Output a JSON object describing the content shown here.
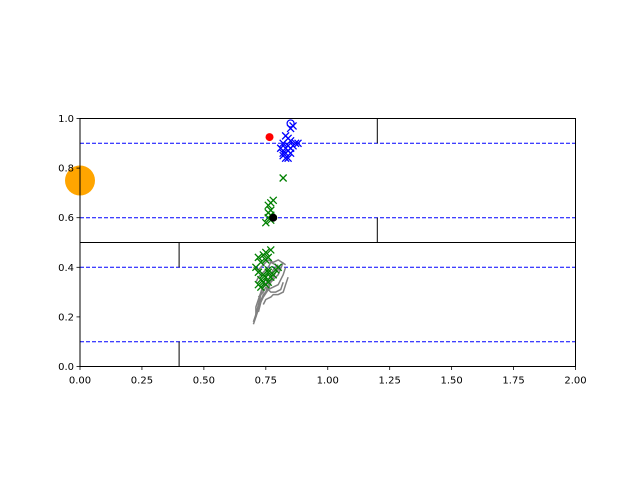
{
  "chart_data": {
    "type": "scatter",
    "title": "",
    "xlabel": "",
    "ylabel": "",
    "xlim": [
      0,
      2
    ],
    "ylim": [
      0,
      1
    ],
    "grid": false,
    "x_ticks": [
      "0.00",
      "0.25",
      "0.50",
      "0.75",
      "1.00",
      "1.25",
      "1.50",
      "1.75",
      "2.00"
    ],
    "y_ticks": [
      "0.0",
      "0.2",
      "0.4",
      "0.6",
      "0.8",
      "1.0"
    ],
    "colors": {
      "blue": "#0000ff",
      "green": "#008000",
      "gray": "#808080",
      "red": "#ff0000",
      "black": "#000000",
      "orange": "#ffa500"
    },
    "reference_lines": {
      "dashed_blue_y": [
        0.1,
        0.4,
        0.6,
        0.9
      ],
      "solid_black_y": [
        0.5
      ],
      "vertical_segments": [
        {
          "x": 1.2,
          "y0": 0.9,
          "y1": 1.0
        },
        {
          "x": 1.2,
          "y0": 0.5,
          "y1": 0.6
        },
        {
          "x": 0.4,
          "y0": 0.4,
          "y1": 0.5
        },
        {
          "x": 0.4,
          "y0": 0.0,
          "y1": 0.1
        }
      ]
    },
    "series": [
      {
        "marker": "x",
        "color": "blue",
        "points": [
          [
            0.82,
            0.9
          ],
          [
            0.83,
            0.88
          ],
          [
            0.84,
            0.89
          ],
          [
            0.85,
            0.91
          ],
          [
            0.83,
            0.86
          ],
          [
            0.84,
            0.87
          ],
          [
            0.86,
            0.89
          ],
          [
            0.82,
            0.85
          ],
          [
            0.87,
            0.9
          ],
          [
            0.84,
            0.84
          ],
          [
            0.85,
            0.86
          ],
          [
            0.83,
            0.93
          ],
          [
            0.86,
            0.97
          ],
          [
            0.85,
            0.96
          ],
          [
            0.88,
            0.9
          ],
          [
            0.81,
            0.88
          ],
          [
            0.82,
            0.86
          ],
          [
            0.84,
            0.92
          ],
          [
            0.85,
            0.88
          ],
          [
            0.83,
            0.84
          ]
        ]
      },
      {
        "marker": "open-circle",
        "color": "blue",
        "points": [
          [
            0.85,
            0.98
          ]
        ]
      },
      {
        "marker": "x",
        "color": "green",
        "points": [
          [
            0.82,
            0.76
          ],
          [
            0.77,
            0.66
          ],
          [
            0.76,
            0.65
          ],
          [
            0.77,
            0.63
          ],
          [
            0.76,
            0.6
          ],
          [
            0.77,
            0.61
          ],
          [
            0.75,
            0.58
          ],
          [
            0.77,
            0.59
          ],
          [
            0.76,
            0.62
          ],
          [
            0.78,
            0.67
          ],
          [
            0.77,
            0.47
          ],
          [
            0.75,
            0.46
          ],
          [
            0.74,
            0.45
          ],
          [
            0.72,
            0.44
          ],
          [
            0.73,
            0.42
          ],
          [
            0.75,
            0.43
          ],
          [
            0.76,
            0.44
          ],
          [
            0.71,
            0.4
          ],
          [
            0.72,
            0.38
          ],
          [
            0.74,
            0.37
          ],
          [
            0.76,
            0.39
          ],
          [
            0.75,
            0.36
          ],
          [
            0.73,
            0.35
          ],
          [
            0.77,
            0.36
          ],
          [
            0.78,
            0.37
          ],
          [
            0.76,
            0.34
          ],
          [
            0.74,
            0.34
          ],
          [
            0.72,
            0.33
          ],
          [
            0.75,
            0.33
          ],
          [
            0.79,
            0.39
          ],
          [
            0.8,
            0.4
          ],
          [
            0.73,
            0.32
          ],
          [
            0.76,
            0.38
          ]
        ]
      },
      {
        "marker": "dot",
        "color": "red",
        "points": [
          [
            0.765,
            0.925
          ]
        ]
      },
      {
        "marker": "dot",
        "color": "black",
        "points": [
          [
            0.78,
            0.6
          ]
        ]
      },
      {
        "marker": "big-dot",
        "color": "orange",
        "points": [
          [
            0.0,
            0.75
          ]
        ]
      }
    ],
    "gray_trails": [
      [
        [
          0.7,
          0.18
        ],
        [
          0.71,
          0.21
        ],
        [
          0.72,
          0.25
        ],
        [
          0.73,
          0.29
        ],
        [
          0.74,
          0.32
        ],
        [
          0.76,
          0.35
        ],
        [
          0.77,
          0.37
        ],
        [
          0.78,
          0.39
        ],
        [
          0.8,
          0.41
        ]
      ],
      [
        [
          0.71,
          0.2
        ],
        [
          0.72,
          0.23
        ],
        [
          0.73,
          0.27
        ],
        [
          0.75,
          0.3
        ],
        [
          0.76,
          0.33
        ],
        [
          0.78,
          0.36
        ],
        [
          0.79,
          0.38
        ],
        [
          0.81,
          0.4
        ]
      ],
      [
        [
          0.72,
          0.22
        ],
        [
          0.73,
          0.26
        ],
        [
          0.74,
          0.28
        ],
        [
          0.76,
          0.31
        ],
        [
          0.77,
          0.34
        ],
        [
          0.78,
          0.35
        ],
        [
          0.8,
          0.37
        ],
        [
          0.82,
          0.42
        ]
      ],
      [
        [
          0.7,
          0.17
        ],
        [
          0.71,
          0.2
        ],
        [
          0.71,
          0.24
        ],
        [
          0.72,
          0.27
        ],
        [
          0.73,
          0.3
        ],
        [
          0.74,
          0.33
        ],
        [
          0.75,
          0.36
        ],
        [
          0.76,
          0.38
        ]
      ],
      [
        [
          0.73,
          0.26
        ],
        [
          0.74,
          0.29
        ],
        [
          0.76,
          0.31
        ],
        [
          0.78,
          0.32
        ],
        [
          0.8,
          0.33
        ],
        [
          0.81,
          0.35
        ],
        [
          0.82,
          0.37
        ],
        [
          0.83,
          0.4
        ]
      ],
      [
        [
          0.72,
          0.28
        ],
        [
          0.74,
          0.3
        ],
        [
          0.75,
          0.32
        ],
        [
          0.77,
          0.3
        ],
        [
          0.79,
          0.3
        ],
        [
          0.81,
          0.31
        ],
        [
          0.82,
          0.34
        ]
      ],
      [
        [
          0.74,
          0.25
        ],
        [
          0.75,
          0.27
        ],
        [
          0.77,
          0.28
        ],
        [
          0.78,
          0.29
        ],
        [
          0.8,
          0.29
        ],
        [
          0.82,
          0.3
        ],
        [
          0.83,
          0.33
        ],
        [
          0.84,
          0.36
        ]
      ],
      [
        [
          0.71,
          0.34
        ],
        [
          0.72,
          0.36
        ],
        [
          0.74,
          0.38
        ],
        [
          0.76,
          0.4
        ],
        [
          0.77,
          0.42
        ],
        [
          0.79,
          0.41
        ],
        [
          0.8,
          0.39
        ]
      ],
      [
        [
          0.7,
          0.4
        ],
        [
          0.72,
          0.39
        ],
        [
          0.74,
          0.41
        ],
        [
          0.76,
          0.43
        ],
        [
          0.78,
          0.42
        ],
        [
          0.8,
          0.43
        ],
        [
          0.83,
          0.41
        ]
      ]
    ]
  }
}
